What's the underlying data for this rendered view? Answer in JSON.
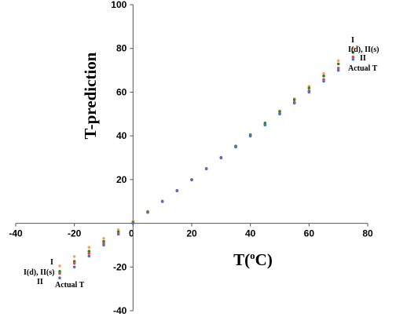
{
  "chart_data": {
    "type": "scatter",
    "xlabel_main": "T(",
    "xlabel_sup": "o",
    "xlabel_end": "C)",
    "ylabel": "T-prediction",
    "xlim": [
      -40,
      80
    ],
    "ylim": [
      -40,
      100
    ],
    "x_ticks": [
      -40,
      -20,
      0,
      20,
      40,
      60,
      80
    ],
    "y_ticks": [
      -40,
      -20,
      0,
      20,
      40,
      60,
      80,
      100
    ],
    "x": [
      -25,
      -20,
      -15,
      -10,
      -5,
      0,
      5,
      10,
      15,
      20,
      25,
      30,
      35,
      40,
      45,
      50,
      55,
      60,
      65,
      70,
      75
    ],
    "series": [
      {
        "name": "I",
        "color": "#f4a460",
        "values": [
          -19.5,
          -15.2,
          -11.0,
          -6.9,
          -2.9,
          1.0,
          5.5,
          10.2,
          15.0,
          19.9,
          24.9,
          30.0,
          35.2,
          40.5,
          45.9,
          51.4,
          57.0,
          62.7,
          68.5,
          74.4,
          80.2
        ]
      },
      {
        "name": "I(d), II(s)",
        "color": "#228b22",
        "values": [
          -22.0,
          -17.4,
          -12.8,
          -8.3,
          -3.9,
          0.5,
          5.2,
          10.0,
          14.9,
          19.9,
          25.0,
          30.1,
          35.3,
          40.5,
          45.8,
          51.1,
          56.5,
          61.9,
          67.4,
          72.9,
          78.2
        ]
      },
      {
        "name": "II",
        "color": "#ff3b3b",
        "values": [
          -22.9,
          -18.3,
          -13.7,
          -9.2,
          -4.7,
          0.1,
          5.0,
          9.9,
          14.9,
          19.9,
          24.9,
          29.9,
          34.9,
          39.9,
          45.0,
          50.2,
          55.4,
          60.6,
          65.8,
          71.0,
          76.1
        ]
      },
      {
        "name": "Actual T",
        "color": "#4a6fd4",
        "values": [
          -25,
          -20,
          -15,
          -10,
          -5,
          0,
          5,
          10,
          15,
          20,
          25,
          30,
          35,
          40,
          45,
          50,
          55,
          60,
          65,
          70,
          75
        ]
      }
    ],
    "annotations_right": [
      "I",
      "I(d), II(s)",
      "II",
      "Actual T"
    ],
    "annotations_left": [
      "I",
      "I(d), II(s)",
      "II",
      "Actual T"
    ]
  }
}
